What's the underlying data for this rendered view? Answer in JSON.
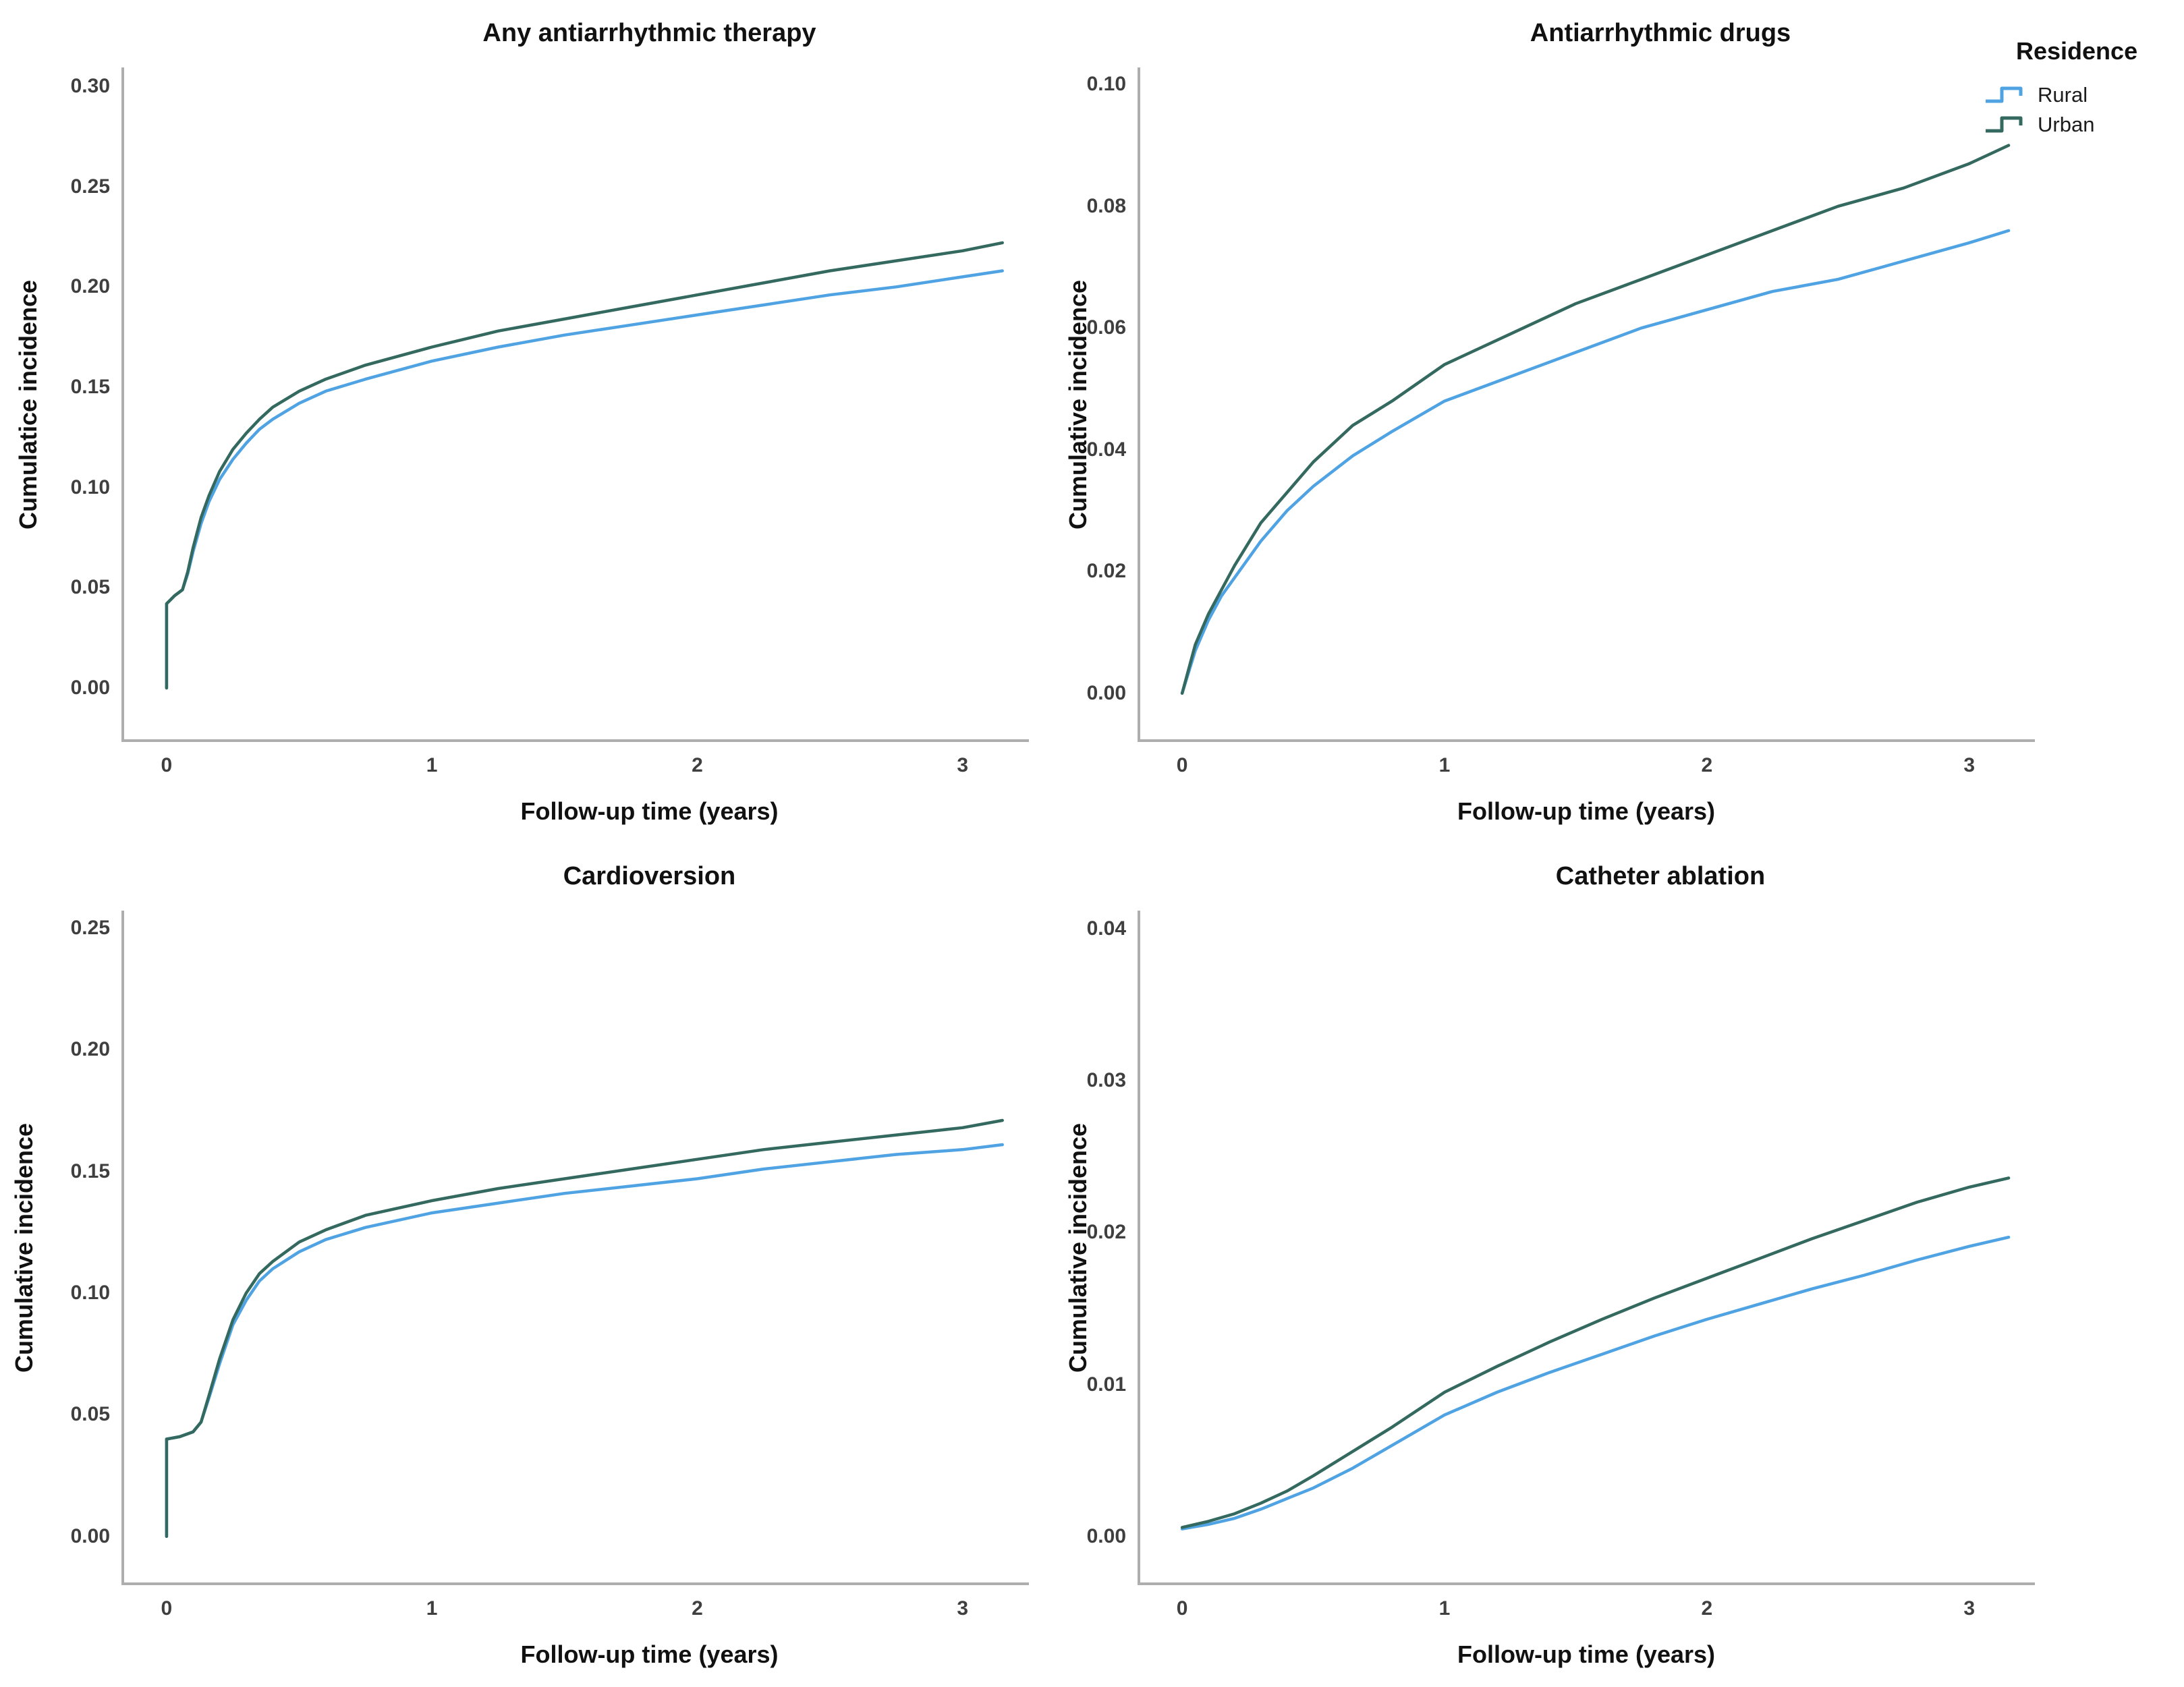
{
  "figure": {
    "xlabel": "Follow-up time (years)",
    "axis_color": "#aeaeae",
    "tick_color": "#3f3f3f",
    "legend": {
      "title": "Residence",
      "entries": [
        {
          "label": "Rural",
          "color": "#4fa3e3"
        },
        {
          "label": "Urban",
          "color": "#33695e"
        }
      ]
    }
  },
  "chart_data": [
    {
      "type": "line",
      "title": "Any antiarrhythmic therapy",
      "ylabel": "Cumulatice incidence",
      "xlabel": "Follow-up time (years)",
      "legend_position": "none",
      "grid": false,
      "xlim": [
        -0.17,
        3.25
      ],
      "ylim": [
        -0.0269,
        0.3094
      ],
      "xticks": {
        "values": [
          0,
          1,
          2,
          3
        ],
        "labels": [
          "0",
          "1",
          "2",
          "3"
        ]
      },
      "yticks": {
        "values": [
          0.0,
          0.05,
          0.1,
          0.15,
          0.2,
          0.25,
          0.3
        ],
        "labels": [
          "0.00",
          "0.05",
          "0.10",
          "0.15",
          "0.20",
          "0.25",
          "0.30"
        ]
      },
      "x": [
        0,
        0,
        0.03,
        0.06,
        0.08,
        0.1,
        0.13,
        0.16,
        0.2,
        0.25,
        0.3,
        0.35,
        0.4,
        0.5,
        0.6,
        0.75,
        1.0,
        1.25,
        1.5,
        1.75,
        2.0,
        2.25,
        2.5,
        2.75,
        3.0,
        3.15
      ],
      "series": [
        {
          "name": "Rural",
          "color": "#4fa3e3",
          "y": [
            0,
            0.042,
            0.046,
            0.049,
            0.057,
            0.068,
            0.082,
            0.093,
            0.104,
            0.114,
            0.122,
            0.129,
            0.134,
            0.142,
            0.148,
            0.154,
            0.163,
            0.17,
            0.176,
            0.181,
            0.186,
            0.191,
            0.196,
            0.2,
            0.205,
            0.208
          ]
        },
        {
          "name": "Urban",
          "color": "#33695e",
          "y": [
            0,
            0.042,
            0.046,
            0.049,
            0.058,
            0.07,
            0.085,
            0.096,
            0.108,
            0.119,
            0.127,
            0.134,
            0.14,
            0.148,
            0.154,
            0.161,
            0.17,
            0.178,
            0.184,
            0.19,
            0.196,
            0.202,
            0.208,
            0.213,
            0.218,
            0.222
          ]
        }
      ]
    },
    {
      "type": "line",
      "title": "Antiarrhythmic drugs",
      "ylabel": "Cumulative incidence",
      "xlabel": "Follow-up time (years)",
      "legend_position": "top-right-outside",
      "grid": false,
      "xlim": [
        -0.17,
        3.25
      ],
      "ylim": [
        -0.008,
        0.1028
      ],
      "xticks": {
        "values": [
          0,
          1,
          2,
          3
        ],
        "labels": [
          "0",
          "1",
          "2",
          "3"
        ]
      },
      "yticks": {
        "values": [
          0.0,
          0.02,
          0.04,
          0.06,
          0.08,
          0.1
        ],
        "labels": [
          "0.00",
          "0.02",
          "0.04",
          "0.06",
          "0.08",
          "0.10"
        ]
      },
      "x": [
        0,
        0.05,
        0.1,
        0.15,
        0.2,
        0.3,
        0.4,
        0.5,
        0.65,
        0.8,
        1.0,
        1.25,
        1.5,
        1.75,
        2.0,
        2.25,
        2.5,
        2.75,
        3.0,
        3.15
      ],
      "series": [
        {
          "name": "Rural",
          "color": "#4fa3e3",
          "y": [
            0,
            0.007,
            0.012,
            0.016,
            0.019,
            0.025,
            0.03,
            0.034,
            0.039,
            0.043,
            0.048,
            0.052,
            0.056,
            0.06,
            0.063,
            0.066,
            0.068,
            0.071,
            0.074,
            0.076
          ]
        },
        {
          "name": "Urban",
          "color": "#33695e",
          "y": [
            0,
            0.008,
            0.013,
            0.017,
            0.021,
            0.028,
            0.033,
            0.038,
            0.044,
            0.048,
            0.054,
            0.059,
            0.064,
            0.068,
            0.072,
            0.076,
            0.08,
            0.083,
            0.087,
            0.09
          ]
        }
      ]
    },
    {
      "type": "line",
      "title": "Cardioversion",
      "ylabel": "Cumulative incidence",
      "xlabel": "Follow-up time (years)",
      "legend_position": "none",
      "grid": false,
      "xlim": [
        -0.17,
        3.25
      ],
      "ylim": [
        -0.02,
        0.2572
      ],
      "xticks": {
        "values": [
          0,
          1,
          2,
          3
        ],
        "labels": [
          "0",
          "1",
          "2",
          "3"
        ]
      },
      "yticks": {
        "values": [
          0.0,
          0.05,
          0.1,
          0.15,
          0.2,
          0.25
        ],
        "labels": [
          "0.00",
          "0.05",
          "0.10",
          "0.15",
          "0.20",
          "0.25"
        ]
      },
      "x": [
        0,
        0,
        0.05,
        0.1,
        0.13,
        0.16,
        0.2,
        0.25,
        0.3,
        0.35,
        0.4,
        0.5,
        0.6,
        0.75,
        1.0,
        1.25,
        1.5,
        1.75,
        2.0,
        2.25,
        2.5,
        2.75,
        3.0,
        3.15
      ],
      "series": [
        {
          "name": "Rural",
          "color": "#4fa3e3",
          "y": [
            0,
            0.04,
            0.041,
            0.043,
            0.047,
            0.057,
            0.071,
            0.087,
            0.097,
            0.105,
            0.11,
            0.117,
            0.122,
            0.127,
            0.133,
            0.137,
            0.141,
            0.144,
            0.147,
            0.151,
            0.154,
            0.157,
            0.159,
            0.161
          ]
        },
        {
          "name": "Urban",
          "color": "#33695e",
          "y": [
            0,
            0.04,
            0.041,
            0.043,
            0.047,
            0.058,
            0.073,
            0.089,
            0.1,
            0.108,
            0.113,
            0.121,
            0.126,
            0.132,
            0.138,
            0.143,
            0.147,
            0.151,
            0.155,
            0.159,
            0.162,
            0.165,
            0.168,
            0.171
          ]
        }
      ]
    },
    {
      "type": "line",
      "title": "Catheter ablation",
      "ylabel": "Cumulative incidence",
      "xlabel": "Follow-up time (years)",
      "legend_position": "none",
      "grid": false,
      "xlim": [
        -0.17,
        3.25
      ],
      "ylim": [
        -0.0032,
        0.0412
      ],
      "xticks": {
        "values": [
          0,
          1,
          2,
          3
        ],
        "labels": [
          "0",
          "1",
          "2",
          "3"
        ]
      },
      "yticks": {
        "values": [
          0.0,
          0.01,
          0.02,
          0.03,
          0.04
        ],
        "labels": [
          "0.00",
          "0.01",
          "0.02",
          "0.03",
          "0.04"
        ]
      },
      "x": [
        0,
        0.1,
        0.2,
        0.3,
        0.4,
        0.5,
        0.65,
        0.8,
        1.0,
        1.2,
        1.4,
        1.6,
        1.8,
        2.0,
        2.2,
        2.4,
        2.6,
        2.8,
        3.0,
        3.15
      ],
      "series": [
        {
          "name": "Rural",
          "color": "#4fa3e3",
          "y": [
            0.0005,
            0.0008,
            0.0012,
            0.0018,
            0.0025,
            0.0032,
            0.0045,
            0.006,
            0.008,
            0.0095,
            0.0108,
            0.012,
            0.0132,
            0.0143,
            0.0153,
            0.0163,
            0.0172,
            0.0182,
            0.0191,
            0.0197
          ]
        },
        {
          "name": "Urban",
          "color": "#33695e",
          "y": [
            0.0006,
            0.001,
            0.0015,
            0.0022,
            0.003,
            0.004,
            0.0056,
            0.0072,
            0.0095,
            0.0112,
            0.0128,
            0.0143,
            0.0157,
            0.017,
            0.0183,
            0.0196,
            0.0208,
            0.022,
            0.023,
            0.0236
          ]
        }
      ]
    }
  ]
}
